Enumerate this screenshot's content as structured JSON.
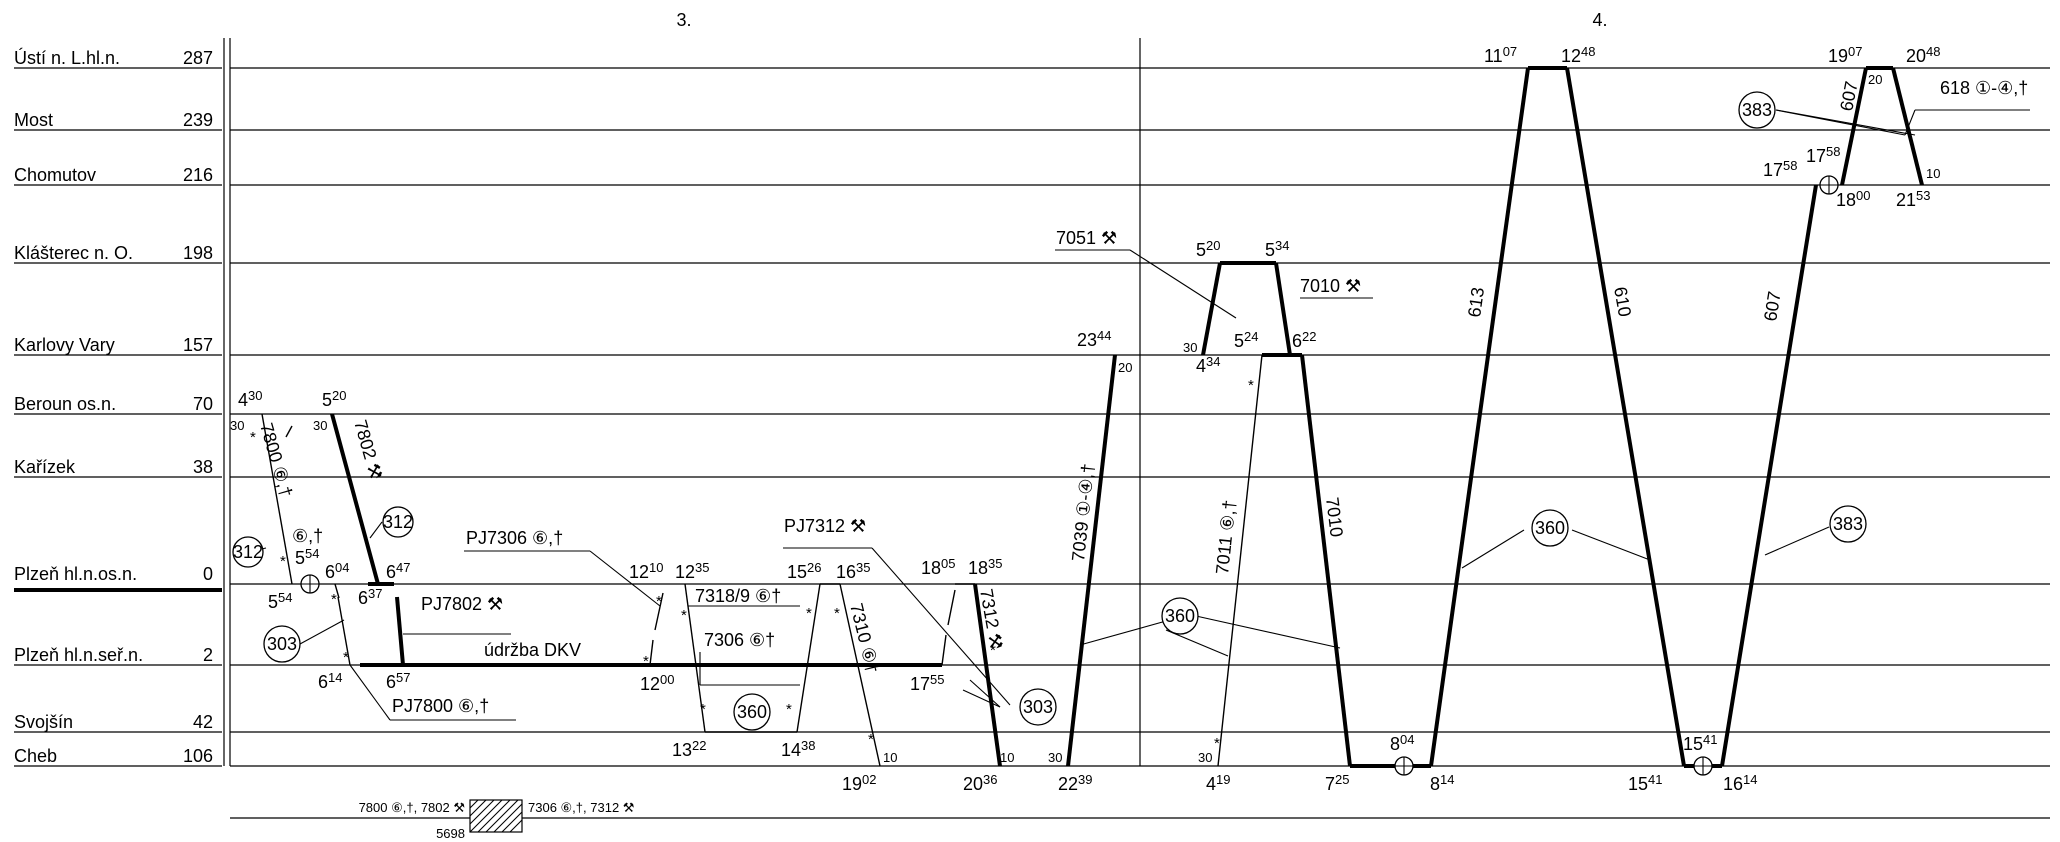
{
  "days": [
    "3.",
    "4."
  ],
  "stations": [
    {
      "name": "Ústí n. L.hl.n.",
      "km": "287"
    },
    {
      "name": "Most",
      "km": "239"
    },
    {
      "name": "Chomutov",
      "km": "216"
    },
    {
      "name": "Klášterec n. O.",
      "km": "198"
    },
    {
      "name": "Karlovy Vary",
      "km": "157"
    },
    {
      "name": "Beroun os.n.",
      "km": "70"
    },
    {
      "name": "Kařízek",
      "km": "38"
    },
    {
      "name": "Plzeň hl.n.os.n.",
      "km": "0"
    },
    {
      "name": "Plzeň hl.n.seř.n.",
      "km": "2"
    },
    {
      "name": "Svojšín",
      "km": "42"
    },
    {
      "name": "Cheb",
      "km": "106"
    }
  ],
  "labels": {
    "pj7306": "PJ7306 ⑥,†",
    "pj7312": "PJ7312 ⚒",
    "pj7802": "PJ7802 ⚒",
    "pj7800": "PJ7800 ⑥,†",
    "udrzba": "údržba DKV",
    "t7051": "7051 ⚒",
    "t7010a": "7010 ⚒",
    "t618": "618 ①-④,†",
    "t7318": "7318/9 ⑥†",
    "t7306": "7306 ⑥†",
    "rot7800": "7800 ⑥,†",
    "rot7802": "7802 ⚒",
    "rot7310": "7310 ⑥†",
    "rot7312": "7312 ⚒",
    "rot7039": "7039 ①-④,†",
    "rot7011": "7011 ⑥,†",
    "rot7010": "7010",
    "rot613": "613",
    "rot610": "610",
    "rot607a": "607",
    "rot607b": "607",
    "c312a": "312",
    "c312b": "312",
    "c303a": "303",
    "c303b": "303",
    "c360a": "360",
    "c360b": "360",
    "c360c": "360",
    "c383a": "383",
    "c383b": "383",
    "d6": "⑥,†",
    "footer_left": "7800 ⑥,†, 7802 ⚒",
    "footer_right": "7306 ⑥,†, 7312 ⚒",
    "footer_num": "5698"
  },
  "times": {
    "t430": [
      "4",
      "30"
    ],
    "t520a": [
      "5",
      "20"
    ],
    "m30a": "30",
    "m30b": "30",
    "t554a": [
      "5",
      "54"
    ],
    "t554b": [
      "5",
      "54"
    ],
    "t604": [
      "6",
      "04"
    ],
    "t637": [
      "6",
      "37"
    ],
    "t647": [
      "6",
      "47"
    ],
    "t614": [
      "6",
      "14"
    ],
    "t657": [
      "6",
      "57"
    ],
    "t1210": [
      "12",
      "10"
    ],
    "t1235": [
      "12",
      "35"
    ],
    "t1200": [
      "12",
      "00"
    ],
    "t1322": [
      "13",
      "22"
    ],
    "t1438": [
      "14",
      "38"
    ],
    "t1526": [
      "15",
      "26"
    ],
    "t1635": [
      "16",
      "35"
    ],
    "t1902": [
      "19",
      "02"
    ],
    "m10a": "10",
    "t1805": [
      "18",
      "05"
    ],
    "t1835": [
      "18",
      "35"
    ],
    "t1755": [
      "17",
      "55"
    ],
    "t2036": [
      "20",
      "36"
    ],
    "m10b": "10",
    "t2344": [
      "23",
      "44"
    ],
    "m20a": "20",
    "t2239": [
      "22",
      "39"
    ],
    "m30c": "30",
    "t520b": [
      "5",
      "20"
    ],
    "t534": [
      "5",
      "34"
    ],
    "m30d": "30",
    "t434": [
      "4",
      "34"
    ],
    "t524": [
      "5",
      "24"
    ],
    "t622": [
      "6",
      "22"
    ],
    "t419": [
      "4",
      "19"
    ],
    "m30e": "30",
    "t725": [
      "7",
      "25"
    ],
    "t804": [
      "8",
      "04"
    ],
    "t814": [
      "8",
      "14"
    ],
    "t1107": [
      "11",
      "07"
    ],
    "t1248": [
      "12",
      "48"
    ],
    "t1541a": [
      "15",
      "41"
    ],
    "t1541b": [
      "15",
      "41"
    ],
    "t1614": [
      "16",
      "14"
    ],
    "t1758a": [
      "17",
      "58"
    ],
    "t1758b": [
      "17",
      "58"
    ],
    "t1800": [
      "18",
      "00"
    ],
    "t1907": [
      "19",
      "07"
    ],
    "t2048": [
      "20",
      "48"
    ],
    "m20b": "20",
    "m10c": "10",
    "t2153": [
      "21",
      "53"
    ]
  }
}
